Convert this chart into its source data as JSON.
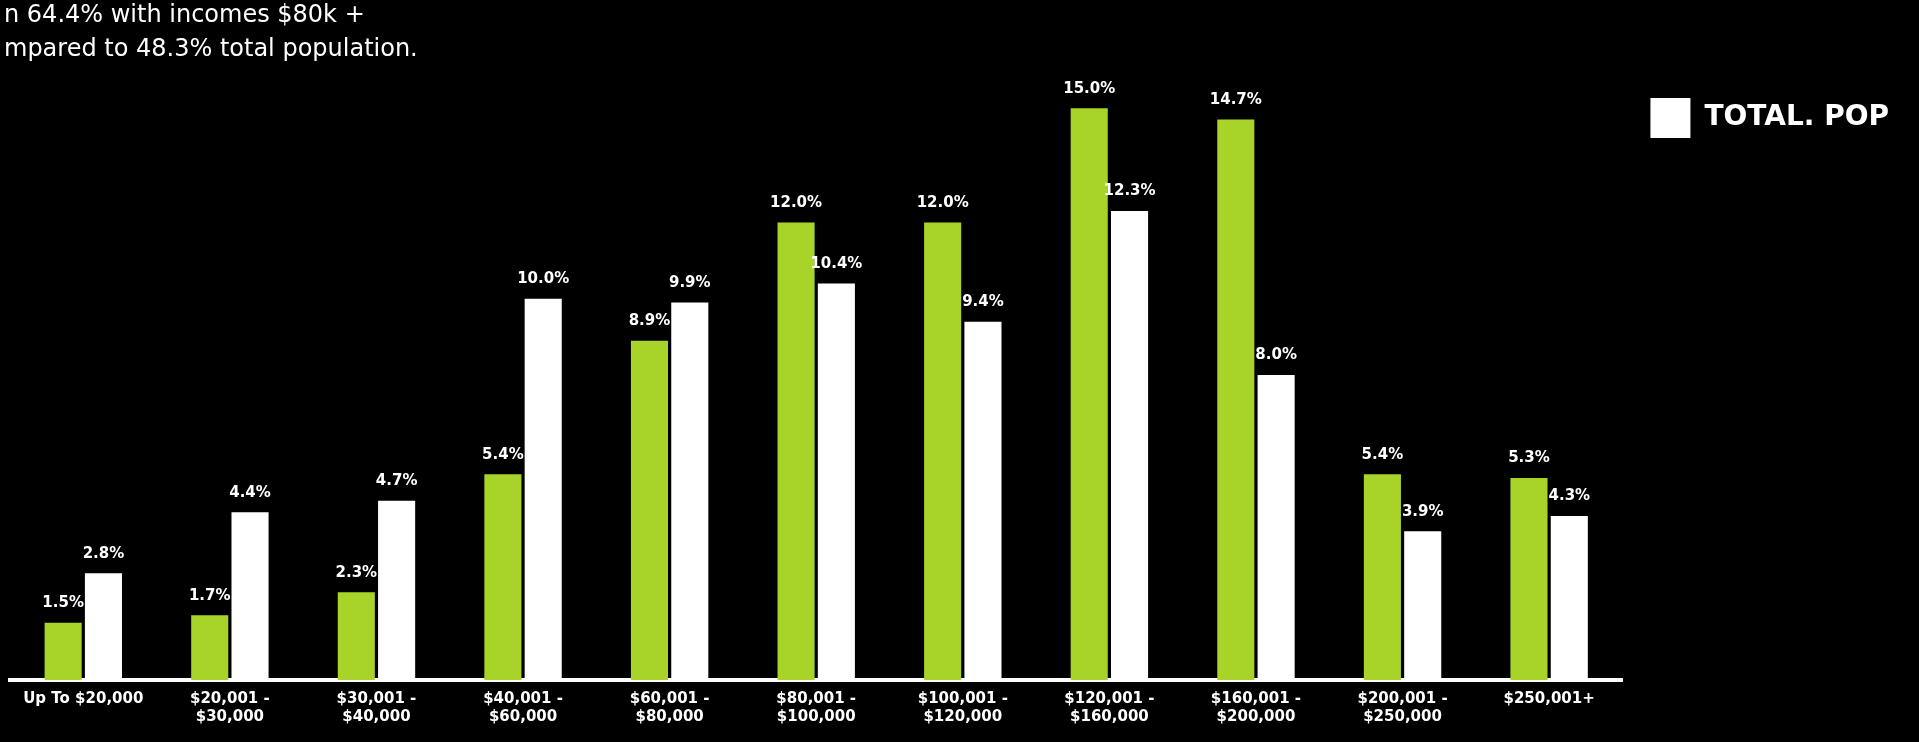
{
  "chart_data": {
    "type": "bar",
    "annotations": [
      "n 64.4% with incomes $80k +",
      "mpared to 48.3% total population."
    ],
    "categories": [
      "Up To $20,000",
      "$20,001 - $30,000",
      "$30,001 - $40,000",
      "$40,001 - $60,000",
      "$60,001 - $80,000",
      "$80,001 - $100,000",
      "$100,001 - $120,000",
      "$120,001 - $160,000",
      "$160,001 - $200,000",
      "$200,001 - $250,000",
      "$250,001+"
    ],
    "series": [
      {
        "color": "#a8d42a",
        "values": [
          1.5,
          1.7,
          2.3,
          5.4,
          8.9,
          12.0,
          12.0,
          15.0,
          14.7,
          5.4,
          5.3
        ],
        "value_labels": [
          "1.5%",
          "1.7%",
          "2.3%",
          "5.4%",
          "8.9%",
          "12.0%",
          "12.0%",
          "15.0%",
          "14.7%",
          "5.4%",
          "5.3%"
        ]
      },
      {
        "name": "TOTAL. POP",
        "color": "#ffffff",
        "values": [
          2.8,
          4.4,
          4.7,
          10.0,
          9.9,
          10.4,
          9.4,
          12.3,
          8.0,
          3.9,
          4.3
        ],
        "value_labels": [
          "2.8%",
          "4.4%",
          "4.7%",
          "10.0%",
          "9.9%",
          "10.4%",
          "9.4%",
          "12.3%",
          "8.0%",
          "3.9%",
          "4.3%"
        ]
      }
    ],
    "legend": "top right"
  }
}
